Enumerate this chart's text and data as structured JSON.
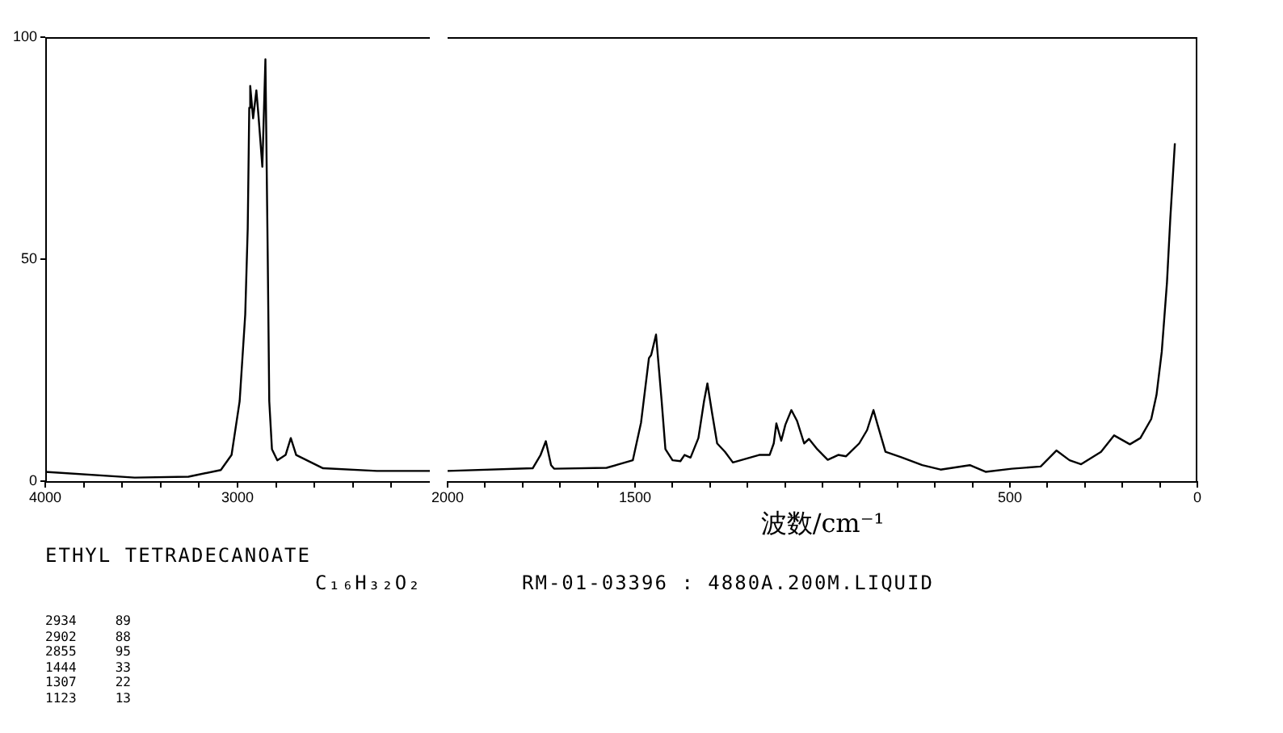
{
  "chart_data": [
    {
      "type": "line",
      "xlim": [
        4000,
        2000
      ],
      "xticks": [
        4000,
        {
          "value": 3800,
          "label": null
        },
        {
          "value": 3600,
          "label": null
        },
        {
          "value": 3400,
          "label": null
        },
        {
          "value": 3200,
          "label": null
        },
        3000,
        {
          "value": 2800,
          "label": null
        },
        {
          "value": 2600,
          "label": null
        },
        {
          "value": 2400,
          "label": null
        },
        {
          "value": 2200,
          "label": null
        }
      ],
      "ylim": [
        0,
        100
      ],
      "yticks": [
        0,
        50,
        100
      ],
      "grid": false,
      "legend": false,
      "marker": "none",
      "line_style": "solid",
      "series": [
        {
          "color": "#000000",
          "x": [
            4000,
            3535,
            3255,
            3087,
            3031,
            2989,
            2960,
            2947,
            2939,
            2934,
            2919,
            2902,
            2891,
            2871,
            2855,
            2843,
            2835,
            2821,
            2793,
            2750,
            2723,
            2695,
            2555,
            2275,
            2000
          ],
          "values": [
            2.1,
            0.8,
            1.0,
            2.5,
            5.9,
            18,
            37.5,
            56.9,
            84.1,
            89,
            81.7,
            88,
            82.3,
            70.8,
            95,
            50.8,
            18,
            7.2,
            4.7,
            5.9,
            9.7,
            5.9,
            2.9,
            2.3,
            2.3
          ]
        }
      ],
      "annotations": [
        "ETHYL TETRADECANOATE",
        "C₁₆H₃₂O₂",
        "RM-01-03396 : 4880A.200M.LIQUID",
        "2934     89",
        "2902     88",
        "2855     95",
        "1444     33",
        "1307     22",
        "1123     13"
      ]
    },
    {
      "type": "line",
      "xlabel": "波数/cm⁻¹",
      "xlim": [
        2000,
        0
      ],
      "xticks": [
        2000,
        {
          "value": 1900,
          "label": null
        },
        {
          "value": 1800,
          "label": null
        },
        {
          "value": 1700,
          "label": null
        },
        {
          "value": 1600,
          "label": null
        },
        1500,
        {
          "value": 1400,
          "label": null
        },
        {
          "value": 1300,
          "label": null
        },
        {
          "value": 1200,
          "label": null
        },
        {
          "value": 1100,
          "label": null
        },
        {
          "value": 1000,
          "label": null
        },
        {
          "value": 900,
          "label": null
        },
        {
          "value": 800,
          "label": null
        },
        {
          "value": 700,
          "label": null
        },
        {
          "value": 600,
          "label": null
        },
        500,
        {
          "value": 400,
          "label": null
        },
        {
          "value": 300,
          "label": null
        },
        {
          "value": 200,
          "label": null
        },
        {
          "value": 100,
          "label": null
        },
        0
      ],
      "ylim": [
        0,
        100
      ],
      "tick_labels": "x",
      "grid": false,
      "legend": false,
      "marker": "none",
      "line_style": "solid",
      "series": [
        {
          "color": "#000000",
          "x": [
            2000,
            1997,
            1773,
            1752,
            1738,
            1724,
            1716,
            1576,
            1506,
            1484,
            1463,
            1457,
            1444,
            1429,
            1419,
            1400,
            1379,
            1368,
            1352,
            1331,
            1316,
            1307,
            1295,
            1281,
            1260,
            1239,
            1169,
            1141,
            1130,
            1123,
            1110,
            1099,
            1083,
            1068,
            1049,
            1036,
            1014,
            986,
            958,
            937,
            902,
            881,
            864,
            853,
            832,
            790,
            734,
            685,
            607,
            565,
            495,
            418,
            376,
            341,
            310,
            257,
            222,
            180,
            152,
            123,
            109,
            95,
            81,
            72,
            60
          ],
          "values": [
            2.3,
            2.3,
            2.9,
            5.9,
            9.0,
            3.6,
            2.8,
            3.0,
            4.7,
            13.2,
            27.7,
            28.4,
            33,
            18,
            7.2,
            4.7,
            4.5,
            5.9,
            5.3,
            9.7,
            18,
            22,
            15.6,
            8.5,
            6.6,
            4.2,
            5.9,
            5.9,
            8.5,
            13,
            9.1,
            12.7,
            16.0,
            13.6,
            8.5,
            9.5,
            7.2,
            4.8,
            5.9,
            5.6,
            8.5,
            11.5,
            16.0,
            12.7,
            6.6,
            5.4,
            3.6,
            2.6,
            3.6,
            2.1,
            2.8,
            3.3,
            6.9,
            4.7,
            3.8,
            6.6,
            10.3,
            8.3,
            9.7,
            14,
            19.4,
            29.1,
            44.8,
            59.4,
            76.1
          ]
        }
      ]
    }
  ]
}
